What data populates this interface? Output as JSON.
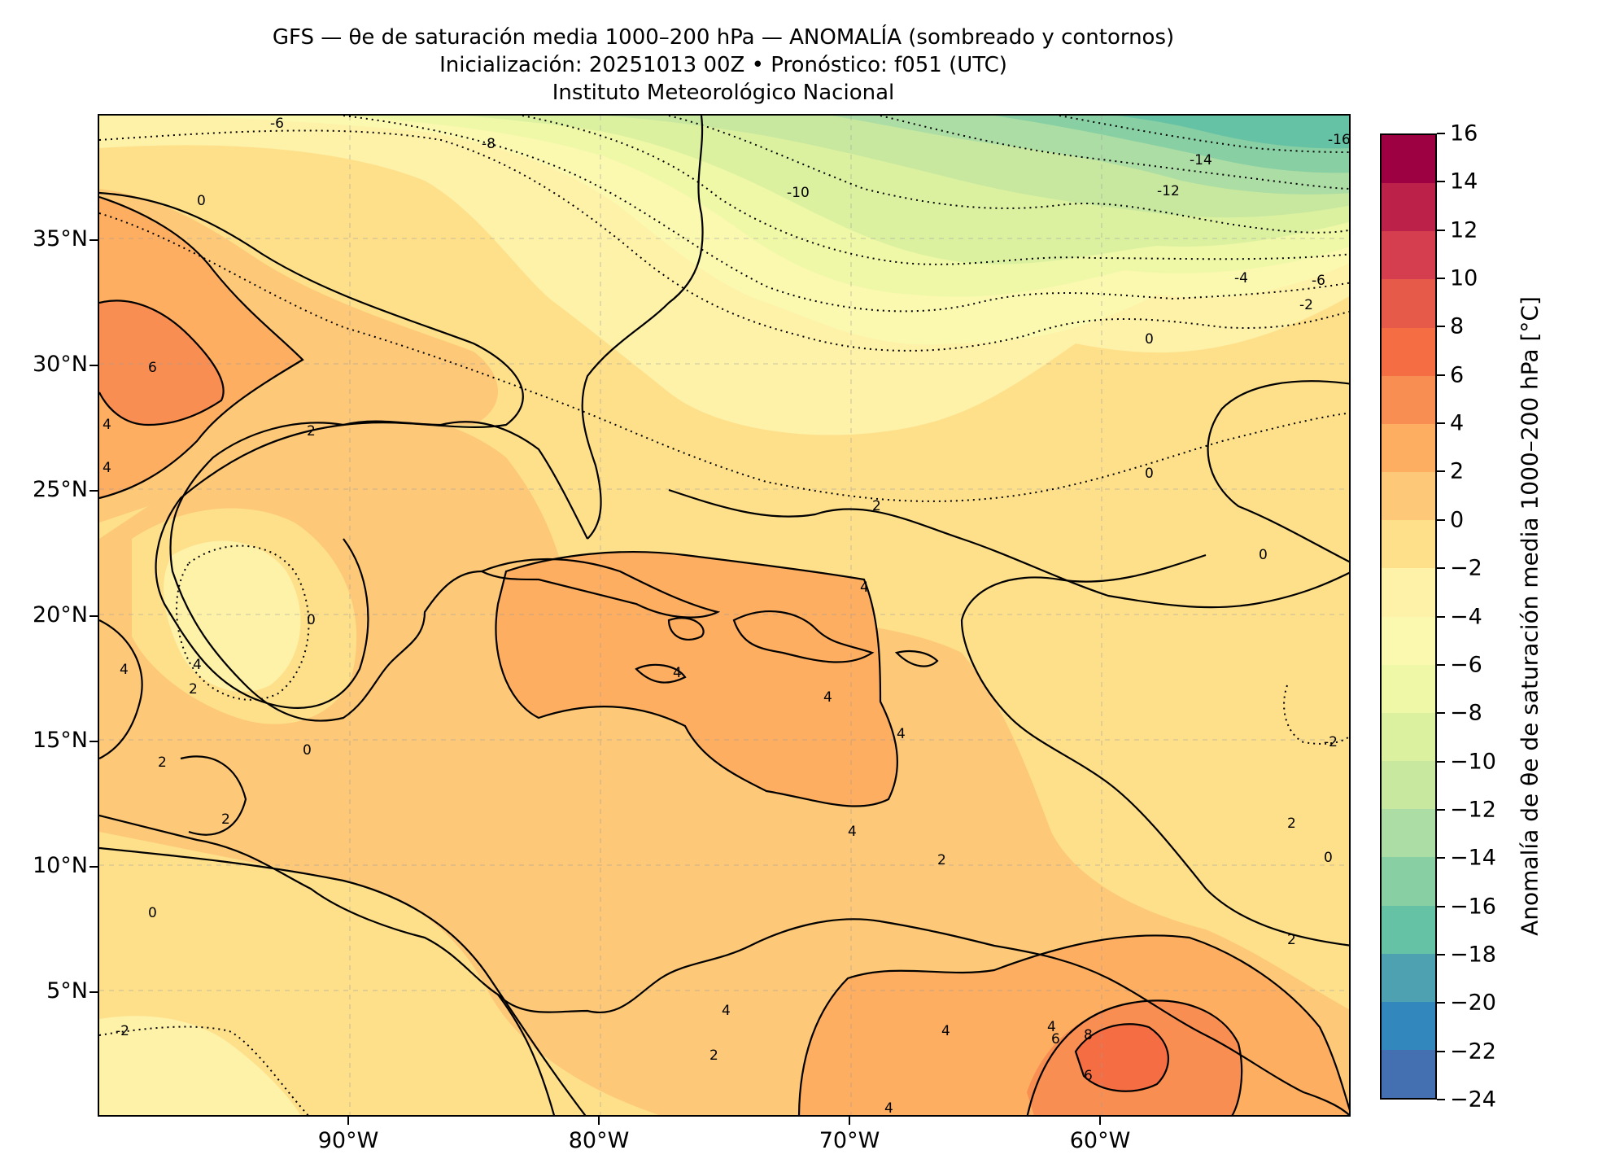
{
  "header": {
    "title_line1": "GFS — θe de saturación media 1000–200 hPa — ANOMALÍA (sombreado y contornos)",
    "title_line2": "Inicialización: 20251013 00Z   •   Pronóstico: f051 (UTC)",
    "title_line3": "Instituto Meteorológico Nacional"
  },
  "map": {
    "lon_range": [
      -100,
      -50
    ],
    "lat_range": [
      0,
      40
    ],
    "lat_labels": [
      "35°N",
      "30°N",
      "25°N",
      "20°N",
      "15°N",
      "10°N",
      "5°N"
    ],
    "lon_labels": [
      "90°W",
      "80°W",
      "70°W",
      "60°W"
    ],
    "lat_values": [
      35,
      30,
      25,
      20,
      15,
      10,
      5
    ],
    "lon_values": [
      -90,
      -80,
      -70,
      -60
    ],
    "contour_labels": [
      "-6",
      "-8",
      "0",
      "-10",
      "-14",
      "-12",
      "-16",
      "-4",
      "-6",
      "-2",
      "0",
      "6",
      "2",
      "0",
      "4",
      "4",
      "0",
      "2",
      "0",
      "4",
      "2",
      "4",
      "4",
      "4",
      "4",
      "4",
      "2",
      "0",
      "2",
      "2",
      "0",
      "-2",
      "2",
      "0",
      "4",
      "2",
      "2",
      "4",
      "4",
      "4",
      "6",
      "8",
      "6",
      "4",
      "-2"
    ]
  },
  "colorbar": {
    "title": "Anomalía de θe de saturación media 1000–200 hPa [°C]",
    "range": [
      -24,
      16
    ],
    "tick_labels": [
      "16",
      "14",
      "12",
      "10",
      "8",
      "6",
      "4",
      "2",
      "0",
      "−2",
      "−4",
      "−6",
      "−8",
      "−10",
      "−12",
      "−14",
      "−16",
      "−18",
      "−20",
      "−22",
      "−24"
    ],
    "tick_values": [
      16,
      14,
      12,
      10,
      8,
      6,
      4,
      2,
      0,
      -2,
      -4,
      -6,
      -8,
      -10,
      -12,
      -14,
      -16,
      -18,
      -20,
      -22,
      -24
    ],
    "colors": [
      "#9e0142",
      "#bc2149",
      "#d53e4f",
      "#e55a49",
      "#f46d43",
      "#f98e52",
      "#fdae61",
      "#fdc877",
      "#fee08b",
      "#fef1a8",
      "#fbf8b0",
      "#eff8a6",
      "#dcf1a0",
      "#c7e89e",
      "#abdda4",
      "#88cfa4",
      "#66c2a5",
      "#4da1b1",
      "#3288bd",
      "#4470b1",
      "#5e4fa2"
    ]
  }
}
